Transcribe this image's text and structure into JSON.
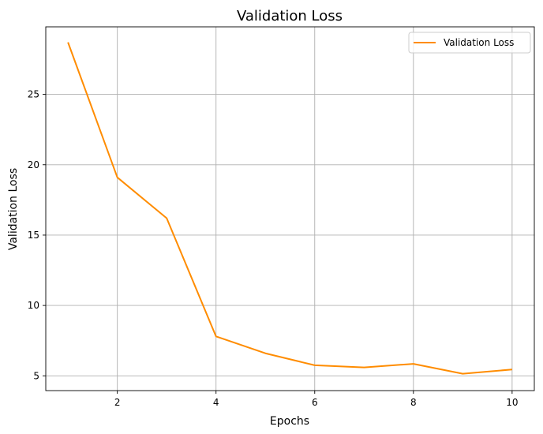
{
  "chart_data": {
    "type": "line",
    "title": "Validation Loss",
    "xlabel": "Epochs",
    "ylabel": "Validation Loss",
    "x": [
      1,
      2,
      3,
      4,
      5,
      6,
      7,
      8,
      9,
      10
    ],
    "series": [
      {
        "name": "Validation Loss",
        "color": "#ff8c00",
        "values": [
          28.7,
          19.1,
          16.2,
          7.8,
          6.6,
          5.75,
          5.6,
          5.85,
          5.15,
          5.45
        ]
      }
    ],
    "xlim": [
      0.55,
      10.45
    ],
    "ylim": [
      3.95,
      29.8
    ],
    "xticks": [
      2,
      4,
      6,
      8,
      10
    ],
    "yticks": [
      5,
      10,
      15,
      20,
      25
    ],
    "grid": true,
    "legend_position": "top-right"
  }
}
